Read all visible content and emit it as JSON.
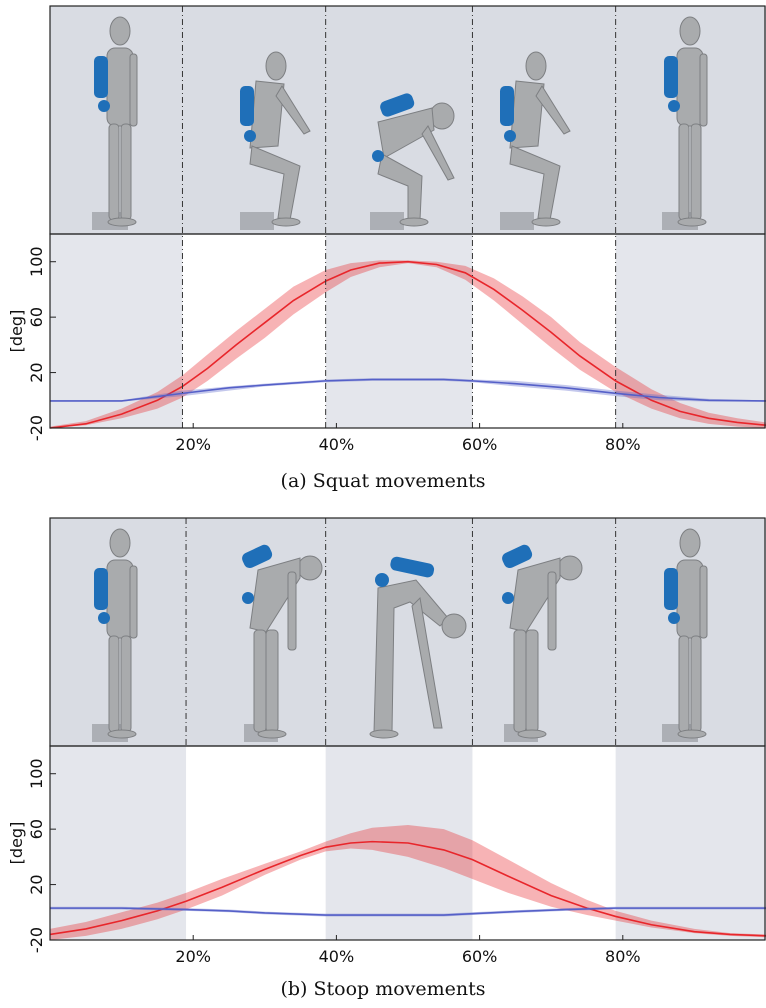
{
  "chart_data": [
    {
      "type": "line",
      "caption": "(a) Squat movements",
      "ylabel": "[deg]",
      "yticks": [
        100,
        60,
        20,
        -20
      ],
      "ylim": [
        -20,
        120
      ],
      "xlim": [
        0,
        100
      ],
      "xticks": [
        "20%",
        "40%",
        "60%",
        "80%"
      ],
      "xtick_values": [
        20,
        40,
        60,
        80
      ],
      "phase_lines": [
        18.5,
        38.5,
        59,
        79
      ],
      "shaded_phases": [
        [
          0,
          18.5
        ],
        [
          38.5,
          59
        ],
        [
          79,
          100
        ]
      ],
      "series": [
        {
          "color": "#e8262b",
          "x": [
            0,
            5,
            10,
            15,
            18.5,
            22,
            26,
            30,
            34,
            38.5,
            42,
            46,
            50,
            54,
            58,
            62,
            66,
            70,
            74,
            79,
            84,
            88,
            92,
            96,
            100
          ],
          "mean": [
            -20,
            -17,
            -10,
            0,
            10,
            23,
            40,
            56,
            72,
            86,
            94,
            99,
            100,
            98,
            92,
            80,
            65,
            49,
            32,
            14,
            0,
            -8,
            -13,
            -16,
            -18
          ],
          "lower": [
            -20,
            -18,
            -13,
            -6,
            2,
            14,
            30,
            45,
            62,
            78,
            89,
            96,
            99,
            96,
            87,
            72,
            55,
            38,
            22,
            6,
            -6,
            -13,
            -17,
            -19,
            -20
          ],
          "upper": [
            -19,
            -15,
            -6,
            6,
            18,
            33,
            50,
            66,
            82,
            94,
            99,
            101,
            101,
            100,
            97,
            88,
            75,
            60,
            42,
            24,
            8,
            -2,
            -9,
            -13,
            -16
          ]
        },
        {
          "color": "#5560c8",
          "x": [
            0,
            10,
            18.5,
            25,
            30,
            38.5,
            45,
            50,
            55,
            59,
            65,
            72,
            79,
            85,
            92,
            100
          ],
          "mean": [
            -0.5,
            -0.5,
            5,
            9,
            11,
            14,
            15,
            15,
            15,
            14,
            12,
            9,
            5,
            2,
            0,
            -0.5
          ],
          "lower": [
            -1,
            -1,
            3,
            7,
            10,
            13,
            14,
            14,
            14,
            13,
            10,
            7,
            3,
            0,
            -1,
            -1
          ],
          "upper": [
            0,
            0,
            7,
            10,
            12,
            15,
            16,
            16,
            16,
            15,
            14,
            11,
            7,
            4,
            1,
            0
          ]
        }
      ]
    },
    {
      "type": "line",
      "caption": "(b) Stoop movements",
      "ylabel": "[deg]",
      "yticks": [
        100,
        60,
        20,
        -20
      ],
      "ylim": [
        -20,
        120
      ],
      "xlim": [
        0,
        100
      ],
      "xticks": [
        "20%",
        "40%",
        "60%",
        "80%"
      ],
      "xtick_values": [
        20,
        40,
        60,
        80
      ],
      "phase_lines": [
        19,
        38.5,
        59,
        79
      ],
      "shaded_phases": [
        [
          0,
          19
        ],
        [
          38.5,
          59
        ],
        [
          79,
          100
        ]
      ],
      "series": [
        {
          "color": "#e8262b",
          "x": [
            0,
            5,
            10,
            15,
            19,
            24,
            30,
            35,
            38.5,
            42,
            45,
            50,
            55,
            59,
            64,
            70,
            75,
            79,
            84,
            90,
            95,
            100
          ],
          "mean": [
            -16,
            -12,
            -6,
            1,
            8,
            18,
            31,
            41,
            47,
            50,
            51,
            50,
            45,
            38,
            26,
            12,
            3,
            -3,
            -9,
            -14,
            -16,
            -17
          ],
          "lower": [
            -20,
            -17,
            -12,
            -5,
            2,
            12,
            27,
            38,
            44,
            46,
            45,
            40,
            32,
            24,
            14,
            4,
            -2,
            -6,
            -11,
            -15,
            -17,
            -18
          ],
          "upper": [
            -12,
            -7,
            0,
            7,
            14,
            24,
            35,
            44,
            51,
            57,
            61,
            63,
            60,
            52,
            38,
            21,
            9,
            1,
            -6,
            -12,
            -15,
            -16
          ]
        },
        {
          "color": "#5560c8",
          "x": [
            0,
            10,
            19,
            25,
            30,
            38.5,
            45,
            50,
            55,
            59,
            65,
            72,
            79,
            85,
            92,
            100
          ],
          "mean": [
            3,
            3,
            2,
            1,
            -0.5,
            -2,
            -2,
            -2,
            -2,
            -1,
            0.5,
            2,
            3,
            3,
            3,
            3
          ],
          "lower": [
            2,
            2,
            1,
            0,
            -1.5,
            -3,
            -3,
            -3,
            -3,
            -2,
            -0.5,
            1,
            2,
            2,
            2,
            2
          ],
          "upper": [
            4,
            4,
            3,
            2,
            0.5,
            -1,
            -1,
            -1,
            -1,
            0,
            1.5,
            3,
            4,
            4,
            4,
            4
          ]
        }
      ]
    }
  ],
  "colors": {
    "shade": "#e4e6ec",
    "image_background": "#d9dce3",
    "mannequin": "#a9abad",
    "exoskeleton": "#1f6fb8",
    "phase_line": "#333333"
  },
  "icons": [
    "mannequin-standing-icon",
    "mannequin-squat-icon",
    "mannequin-stoop-icon"
  ]
}
